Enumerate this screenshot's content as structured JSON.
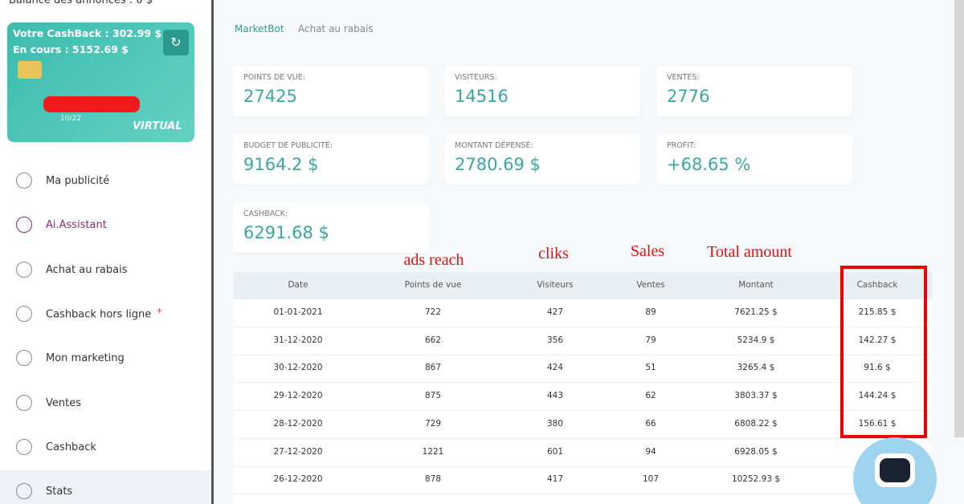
{
  "sidebar": {
    "balance": "Balance des annonces : 0 $",
    "card": {
      "cashback": "Votre CashBack : 302.99 $",
      "pending": "En cours : 5152.69 $",
      "expiry": "10/22",
      "kind": "VIRTUAL"
    },
    "menu": [
      {
        "label": "Ma publicité"
      },
      {
        "label": "Ai.Assistant"
      },
      {
        "label": "Achat au rabais"
      },
      {
        "label": "Cashback hors ligne",
        "badge": "+"
      },
      {
        "label": "Mon marketing"
      },
      {
        "label": "Ventes"
      },
      {
        "label": "Cashback"
      },
      {
        "label": "Stats"
      }
    ]
  },
  "breadcrumb": [
    "MarketBot",
    "Achat au rabais"
  ],
  "stats": [
    {
      "label": "POINTS DE VUE:",
      "value": "27425"
    },
    {
      "label": "VISITEURS:",
      "value": "14516"
    },
    {
      "label": "VENTES:",
      "value": "2776"
    },
    {
      "label": "BUDGET DE PUBLICITÉ:",
      "value": "9164.2 $"
    },
    {
      "label": "MONTANT DÉPENSÉ:",
      "value": "2780.69 $"
    },
    {
      "label": "PROFIT:",
      "value": "+68.65 %"
    },
    {
      "label": "CASHBACK:",
      "value": "6291.68 $"
    }
  ],
  "annotations": [
    "ads reach",
    "cliks",
    "Sales",
    "Total amount"
  ],
  "table": {
    "columns": [
      "Date",
      "Points de vue",
      "Visiteurs",
      "Ventes",
      "Montant",
      "Cashback"
    ],
    "rows": [
      [
        "01-01-2021",
        "722",
        "427",
        "89",
        "7621.25 $",
        "215.85 $"
      ],
      [
        "31-12-2020",
        "662",
        "356",
        "79",
        "5234.9 $",
        "142.27 $"
      ],
      [
        "30-12-2020",
        "867",
        "424",
        "51",
        "3265.4 $",
        "91.6 $"
      ],
      [
        "29-12-2020",
        "875",
        "443",
        "62",
        "3803.37 $",
        "144.24 $"
      ],
      [
        "28-12-2020",
        "729",
        "380",
        "66",
        "6808.22 $",
        "156.61 $"
      ],
      [
        "27-12-2020",
        "1221",
        "601",
        "94",
        "6928.05 $"
      ],
      [
        "26-12-2020",
        "878",
        "417",
        "107",
        "10252.93 $"
      ]
    ]
  }
}
